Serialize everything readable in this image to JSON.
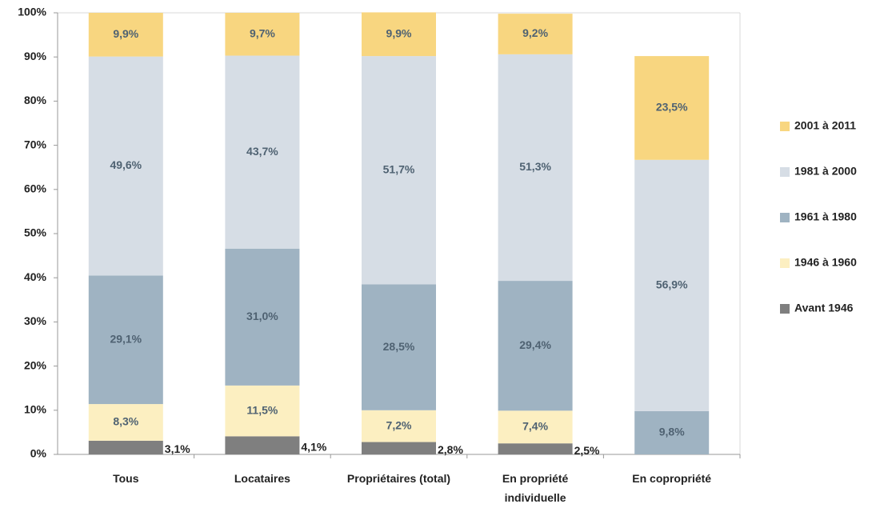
{
  "chart_data": {
    "type": "stacked_bar",
    "categories": [
      "Tous",
      "Locataires",
      "Propriétaires (total)",
      "En propriété individuelle",
      "En copropriété"
    ],
    "series": [
      {
        "name": "Avant 1946",
        "color": "#7f7f7f",
        "label_color": "#222222",
        "values": [
          3.1,
          4.1,
          2.8,
          2.5,
          null
        ],
        "value_labels": [
          "3,1%",
          "4,1%",
          "2,8%",
          "2,5%",
          null
        ]
      },
      {
        "name": "1946 à 1960",
        "color": "#fcefc1",
        "label_color": "#4f6272",
        "values": [
          8.3,
          11.5,
          7.2,
          7.4,
          null
        ],
        "value_labels": [
          "8,3%",
          "11,5%",
          "7,2%",
          "7,4%",
          null
        ]
      },
      {
        "name": "1961 à 1980",
        "color": "#9fb3c2",
        "label_color": "#4f6272",
        "values": [
          29.1,
          31.0,
          28.5,
          29.4,
          9.8
        ],
        "value_labels": [
          "29,1%",
          "31,0%",
          "28,5%",
          "29,4%",
          "9,8%"
        ]
      },
      {
        "name": "1981 à 2000",
        "color": "#d6dde5",
        "label_color": "#4f6272",
        "values": [
          49.6,
          43.7,
          51.7,
          51.3,
          56.9
        ],
        "value_labels": [
          "49,6%",
          "43,7%",
          "51,7%",
          "51,3%",
          "56,9%"
        ]
      },
      {
        "name": "2001 à 2011",
        "color": "#f8d680",
        "label_color": "#4f6272",
        "values": [
          9.9,
          9.7,
          9.9,
          9.2,
          23.5
        ],
        "value_labels": [
          "9,9%",
          "9,7%",
          "9,9%",
          "9,2%",
          "23,5%"
        ]
      }
    ],
    "ylim": [
      0,
      100
    ],
    "yticks": [
      {
        "value": 0,
        "label": "0%"
      },
      {
        "value": 10,
        "label": "10%"
      },
      {
        "value": 20,
        "label": "20%"
      },
      {
        "value": 30,
        "label": "30%"
      },
      {
        "value": 40,
        "label": "40%"
      },
      {
        "value": 50,
        "label": "50%"
      },
      {
        "value": 60,
        "label": "60%"
      },
      {
        "value": 70,
        "label": "70%"
      },
      {
        "value": 80,
        "label": "80%"
      },
      {
        "value": 90,
        "label": "90%"
      },
      {
        "value": 100,
        "label": "100%"
      }
    ],
    "legend": "right"
  }
}
